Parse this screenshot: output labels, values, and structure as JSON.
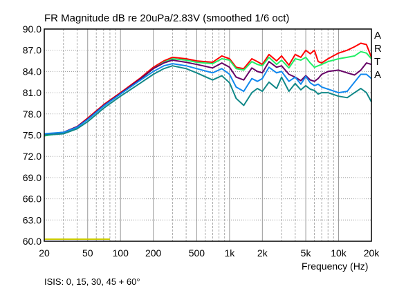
{
  "chart_data": {
    "type": "line",
    "title": "FR Magnitude dB re 20uPa/2.83V (smoothed 1/6 oct)",
    "xlabel": "Frequency (Hz)",
    "ylabel": "",
    "xscale": "log",
    "xlim": [
      20,
      20000
    ],
    "ylim": [
      60,
      90
    ],
    "grid": true,
    "yticks": [
      60,
      63,
      66,
      69,
      72,
      75,
      78,
      81,
      84,
      87,
      90
    ],
    "ytick_labels": [
      "60.0",
      "63.0",
      "66.0",
      "69.0",
      "72.0",
      "75.0",
      "78.0",
      "81.0",
      "84.0",
      "87.0",
      "90.0"
    ],
    "xticks": [
      20,
      50,
      100,
      200,
      500,
      1000,
      2000,
      5000,
      10000,
      20000
    ],
    "xtick_labels": [
      "20",
      "50",
      "100",
      "200",
      "500",
      "1k",
      "2k",
      "5k",
      "10k",
      "20k"
    ],
    "x": [
      20,
      30,
      40,
      50,
      70,
      100,
      150,
      200,
      250,
      300,
      400,
      500,
      700,
      850,
      1000,
      1150,
      1350,
      1600,
      1800,
      2000,
      2300,
      2700,
      3000,
      3500,
      4000,
      4500,
      5000,
      5500,
      6000,
      6500,
      7000,
      8000,
      10000,
      12000,
      14000,
      16000,
      18000,
      20000
    ],
    "series": [
      {
        "name": "0°",
        "color": "#ff0000",
        "values": [
          74.9,
          75.4,
          76.2,
          77.4,
          79.3,
          81.0,
          83.0,
          84.6,
          85.5,
          86.0,
          85.8,
          85.5,
          85.3,
          86.2,
          85.8,
          84.6,
          84.4,
          85.8,
          85.4,
          85.0,
          86.4,
          85.5,
          86.2,
          84.9,
          86.4,
          86.0,
          87.0,
          86.5,
          87.0,
          85.4,
          85.2,
          85.8,
          86.6,
          87.0,
          87.5,
          88.0,
          87.8,
          86.0
        ]
      },
      {
        "name": "15°",
        "color": "#22ee66",
        "values": [
          74.9,
          75.3,
          76.1,
          77.2,
          79.1,
          80.8,
          82.8,
          84.4,
          85.3,
          85.8,
          85.6,
          85.3,
          85.1,
          85.8,
          85.6,
          84.4,
          84.2,
          85.4,
          85.0,
          84.8,
          86.0,
          85.0,
          85.6,
          84.5,
          85.8,
          85.6,
          86.0,
          85.2,
          84.6,
          84.8,
          85.0,
          85.4,
          85.8,
          86.0,
          86.2,
          86.8,
          86.6,
          85.8
        ]
      },
      {
        "name": "30°",
        "color": "#660066",
        "values": [
          75.1,
          75.4,
          76.2,
          77.3,
          79.2,
          80.9,
          82.9,
          84.4,
          85.2,
          85.6,
          85.3,
          85.0,
          84.5,
          85.2,
          84.6,
          83.2,
          82.8,
          84.5,
          84.0,
          83.8,
          85.4,
          84.6,
          84.8,
          83.6,
          83.2,
          82.7,
          83.4,
          82.8,
          82.6,
          83.0,
          83.6,
          84.0,
          84.2,
          83.8,
          83.5,
          84.2,
          85.2,
          85.0
        ]
      },
      {
        "name": "45°",
        "color": "#1188ee",
        "values": [
          75.2,
          75.4,
          76.1,
          77.2,
          79.1,
          80.8,
          82.7,
          84.0,
          84.8,
          85.1,
          84.8,
          84.4,
          83.8,
          84.4,
          83.6,
          81.8,
          81.2,
          83.0,
          82.6,
          83.0,
          84.6,
          83.8,
          84.0,
          82.6,
          83.2,
          82.2,
          83.3,
          82.4,
          82.0,
          82.2,
          81.8,
          81.5,
          81.0,
          81.2,
          82.5,
          83.6,
          83.6,
          83.0
        ]
      },
      {
        "name": "60°",
        "color": "#118888",
        "values": [
          75.0,
          75.2,
          75.9,
          76.9,
          78.8,
          80.5,
          82.3,
          83.6,
          84.4,
          84.8,
          84.4,
          83.8,
          82.8,
          83.4,
          82.4,
          80.2,
          79.2,
          81.0,
          81.6,
          81.2,
          82.5,
          81.6,
          83.2,
          81.2,
          82.3,
          81.4,
          82.0,
          81.5,
          81.3,
          80.8,
          81.0,
          81.0,
          80.5,
          80.3,
          81.0,
          81.6,
          81.0,
          79.7
        ]
      }
    ],
    "marker_line": {
      "color": "#cccc00",
      "x": [
        20,
        80
      ],
      "y": [
        60.2,
        60.2
      ]
    },
    "annotation": "ISIS: 0, 15, 30, 45 + 60°",
    "side_label": [
      "A",
      "R",
      "T",
      "A"
    ]
  }
}
